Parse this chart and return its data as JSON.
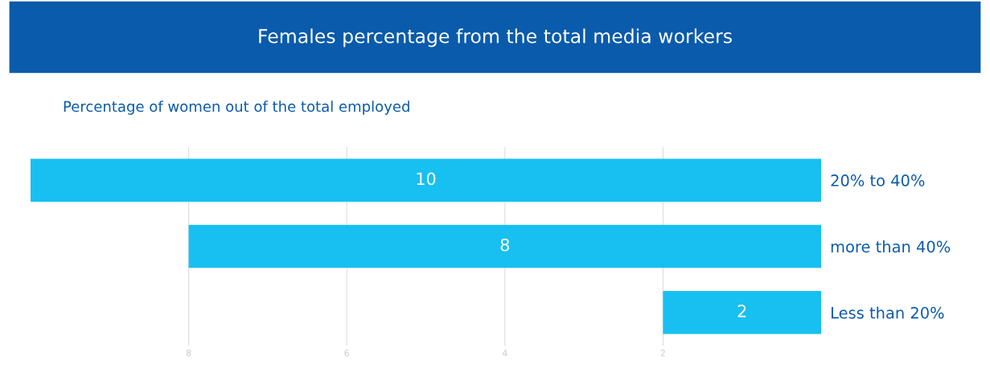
{
  "chart_data": {
    "type": "bar",
    "orientation": "horizontal",
    "title": "Females percentage from the total media workers",
    "subtitle": "Percentage of women out of the total employed",
    "categories": [
      "20% to 40%",
      "more than 40%",
      "Less than 20%"
    ],
    "values": [
      10,
      8,
      2
    ],
    "color": "#17c0f0",
    "data_labels": true,
    "xlim": [
      10,
      0
    ],
    "xticks": [
      8,
      6,
      4,
      2
    ],
    "grid": "x",
    "legend": false
  }
}
